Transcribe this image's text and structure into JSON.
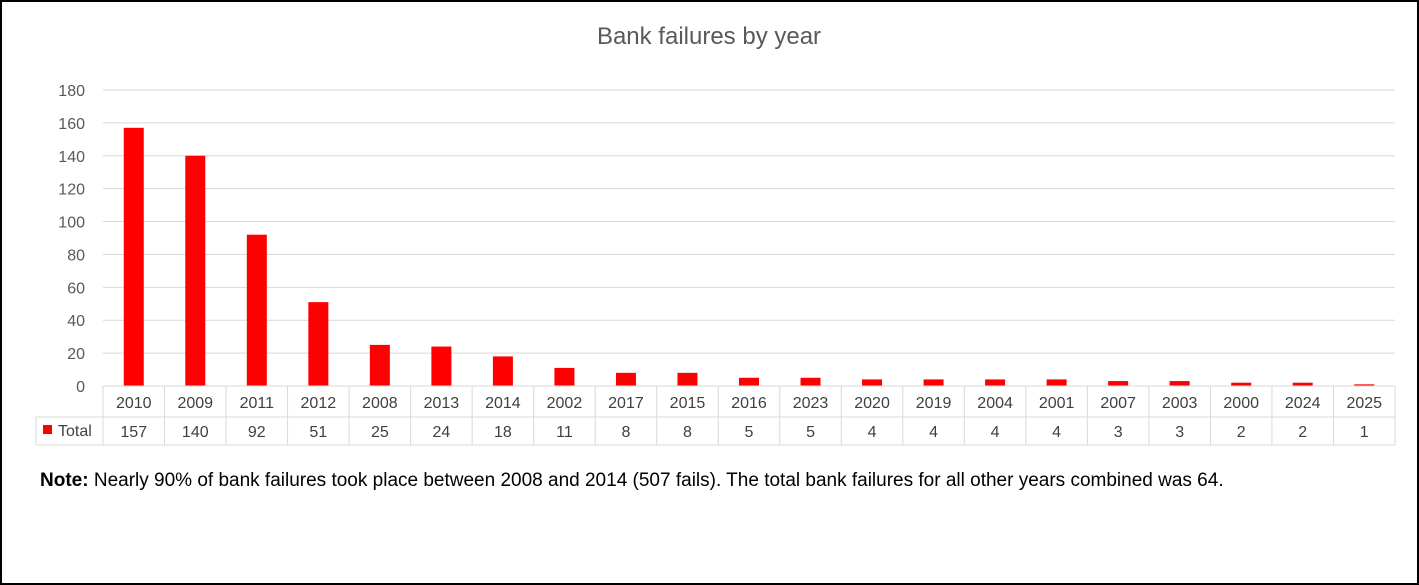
{
  "chart_data": {
    "type": "bar",
    "title": "Bank failures by year",
    "categories": [
      "2010",
      "2009",
      "2011",
      "2012",
      "2008",
      "2013",
      "2014",
      "2002",
      "2017",
      "2015",
      "2016",
      "2023",
      "2020",
      "2019",
      "2004",
      "2001",
      "2007",
      "2003",
      "2000",
      "2024",
      "2025"
    ],
    "series": [
      {
        "name": "Total",
        "values": [
          157,
          140,
          92,
          51,
          25,
          24,
          18,
          11,
          8,
          8,
          5,
          5,
          4,
          4,
          4,
          4,
          3,
          3,
          2,
          2,
          1
        ],
        "color": "#ff0000"
      }
    ],
    "ylim": [
      0,
      180
    ],
    "yticks": [
      0,
      20,
      40,
      60,
      80,
      100,
      120,
      140,
      160,
      180
    ],
    "grid": true,
    "legend": "data-table"
  },
  "note": {
    "label": "Note:",
    "text": " Nearly 90% of bank failures took place between 2008 and 2014 (507 fails). The total bank failures for all other years combined was 64."
  }
}
